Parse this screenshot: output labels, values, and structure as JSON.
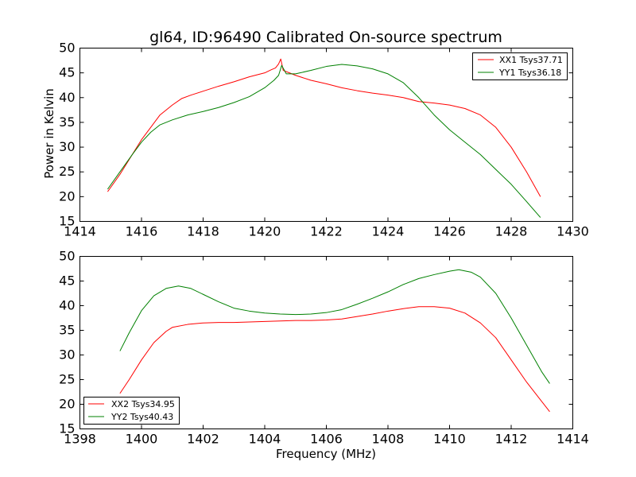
{
  "chart_data": [
    {
      "type": "line",
      "title": "gl64, ID:96490 Calibrated On-source spectrum",
      "xlabel": "",
      "ylabel": "Power in Kelvin",
      "xlim": [
        1414,
        1430
      ],
      "ylim": [
        15,
        50
      ],
      "xticks": [
        1414,
        1416,
        1418,
        1420,
        1422,
        1424,
        1426,
        1428,
        1430
      ],
      "yticks": [
        15,
        20,
        25,
        30,
        35,
        40,
        45,
        50
      ],
      "legend_position": "top-right",
      "series": [
        {
          "name": "XX1 Tsys37.71",
          "color": "#ff0000",
          "x": [
            1414.9,
            1415.3,
            1415.7,
            1416.0,
            1416.3,
            1416.6,
            1417.0,
            1417.3,
            1417.6,
            1418.0,
            1418.5,
            1419.0,
            1419.5,
            1420.0,
            1420.2,
            1420.35,
            1420.45,
            1420.52,
            1420.6,
            1420.8,
            1421.0,
            1421.5,
            1422.0,
            1422.5,
            1423.0,
            1423.5,
            1424.0,
            1424.5,
            1425.0,
            1425.5,
            1426.0,
            1426.5,
            1427.0,
            1427.5,
            1428.0,
            1428.5,
            1428.95
          ],
          "y": [
            21.0,
            24.5,
            28.5,
            31.5,
            34.0,
            36.5,
            38.5,
            39.8,
            40.5,
            41.3,
            42.3,
            43.2,
            44.2,
            45.0,
            45.6,
            46.0,
            46.8,
            47.8,
            45.5,
            45.0,
            44.5,
            43.5,
            42.8,
            42.0,
            41.4,
            40.9,
            40.5,
            40.0,
            39.2,
            38.9,
            38.5,
            37.8,
            36.5,
            34.0,
            30.0,
            25.0,
            20.0
          ]
        },
        {
          "name": "YY1 Tsys36.18",
          "color": "#008000",
          "x": [
            1414.9,
            1415.3,
            1415.7,
            1416.0,
            1416.3,
            1416.6,
            1417.0,
            1417.5,
            1418.0,
            1418.5,
            1419.0,
            1419.5,
            1420.0,
            1420.3,
            1420.45,
            1420.55,
            1420.7,
            1421.0,
            1421.5,
            1422.0,
            1422.5,
            1423.0,
            1423.5,
            1424.0,
            1424.5,
            1425.0,
            1425.5,
            1426.0,
            1426.5,
            1427.0,
            1427.5,
            1428.0,
            1428.5,
            1428.95
          ],
          "y": [
            21.5,
            25.0,
            28.5,
            31.0,
            33.0,
            34.5,
            35.5,
            36.5,
            37.2,
            38.0,
            39.0,
            40.2,
            42.0,
            43.5,
            44.5,
            46.5,
            44.8,
            44.8,
            45.5,
            46.3,
            46.7,
            46.4,
            45.8,
            44.8,
            43.0,
            40.0,
            36.5,
            33.5,
            31.0,
            28.5,
            25.5,
            22.5,
            19.0,
            15.8
          ]
        }
      ]
    },
    {
      "type": "line",
      "title": "",
      "xlabel": "Frequency (MHz)",
      "ylabel": "",
      "xlim": [
        1398,
        1414
      ],
      "ylim": [
        15,
        50
      ],
      "xticks": [
        1398,
        1400,
        1402,
        1404,
        1406,
        1408,
        1410,
        1412,
        1414
      ],
      "yticks": [
        15,
        20,
        25,
        30,
        35,
        40,
        45,
        50
      ],
      "legend_position": "bottom-left",
      "series": [
        {
          "name": "XX2 Tsys34.95",
          "color": "#ff0000",
          "x": [
            1399.3,
            1399.6,
            1400.0,
            1400.4,
            1400.8,
            1401.0,
            1401.5,
            1402.0,
            1402.5,
            1403.0,
            1403.5,
            1404.0,
            1404.5,
            1405.0,
            1405.5,
            1406.0,
            1406.5,
            1407.0,
            1407.5,
            1408.0,
            1408.5,
            1409.0,
            1409.5,
            1410.0,
            1410.5,
            1411.0,
            1411.5,
            1412.0,
            1412.5,
            1413.0,
            1413.25
          ],
          "y": [
            22.2,
            25.0,
            29.0,
            32.5,
            34.8,
            35.6,
            36.2,
            36.5,
            36.6,
            36.6,
            36.7,
            36.8,
            36.9,
            37.0,
            37.0,
            37.1,
            37.3,
            37.8,
            38.3,
            38.9,
            39.4,
            39.8,
            39.8,
            39.5,
            38.5,
            36.5,
            33.5,
            29.0,
            24.5,
            20.5,
            18.5
          ]
        },
        {
          "name": "YY2 Tsys40.43",
          "color": "#008000",
          "x": [
            1399.3,
            1399.6,
            1400.0,
            1400.4,
            1400.8,
            1401.2,
            1401.6,
            1402.0,
            1402.5,
            1403.0,
            1403.5,
            1404.0,
            1404.5,
            1405.0,
            1405.5,
            1406.0,
            1406.5,
            1407.0,
            1407.5,
            1408.0,
            1408.5,
            1409.0,
            1409.5,
            1410.0,
            1410.3,
            1410.7,
            1411.0,
            1411.5,
            1412.0,
            1412.5,
            1413.0,
            1413.25
          ],
          "y": [
            30.8,
            34.5,
            39.0,
            42.0,
            43.5,
            44.0,
            43.5,
            42.3,
            40.8,
            39.5,
            38.9,
            38.5,
            38.3,
            38.2,
            38.3,
            38.6,
            39.2,
            40.3,
            41.5,
            42.8,
            44.3,
            45.5,
            46.3,
            47.0,
            47.3,
            46.8,
            45.8,
            42.5,
            37.5,
            32.0,
            26.5,
            24.2
          ]
        }
      ]
    }
  ]
}
